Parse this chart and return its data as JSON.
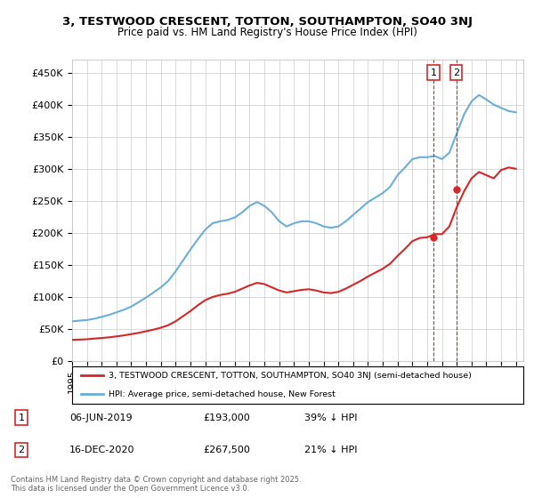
{
  "title_line1": "3, TESTWOOD CRESCENT, TOTTON, SOUTHAMPTON, SO40 3NJ",
  "title_line2": "Price paid vs. HM Land Registry's House Price Index (HPI)",
  "ylim": [
    0,
    470000
  ],
  "yticks": [
    0,
    50000,
    100000,
    150000,
    200000,
    250000,
    300000,
    350000,
    400000,
    450000
  ],
  "ytick_labels": [
    "£0",
    "£50K",
    "£100K",
    "£150K",
    "£200K",
    "£250K",
    "£300K",
    "£350K",
    "£400K",
    "£450K"
  ],
  "legend_entry1": "3, TESTWOOD CRESCENT, TOTTON, SOUTHAMPTON, SO40 3NJ (semi-detached house)",
  "legend_entry2": "HPI: Average price, semi-detached house, New Forest",
  "annotation1_label": "1",
  "annotation1_date": "06-JUN-2019",
  "annotation1_price": "£193,000",
  "annotation1_note": "39% ↓ HPI",
  "annotation2_label": "2",
  "annotation2_date": "16-DEC-2020",
  "annotation2_price": "£267,500",
  "annotation2_note": "21% ↓ HPI",
  "footer": "Contains HM Land Registry data © Crown copyright and database right 2025.\nThis data is licensed under the Open Government Licence v3.0.",
  "hpi_color": "#6baed6",
  "price_color": "#d62728",
  "vline_color": "#d62728",
  "background_color": "#ffffff",
  "grid_color": "#cccccc",
  "hpi_years": [
    1995,
    1995.5,
    1996,
    1996.5,
    1997,
    1997.5,
    1998,
    1998.5,
    1999,
    1999.5,
    2000,
    2000.5,
    2001,
    2001.5,
    2002,
    2002.5,
    2003,
    2003.5,
    2004,
    2004.5,
    2005,
    2005.5,
    2006,
    2006.5,
    2007,
    2007.5,
    2008,
    2008.5,
    2009,
    2009.5,
    2010,
    2010.5,
    2011,
    2011.5,
    2012,
    2012.5,
    2013,
    2013.5,
    2014,
    2014.5,
    2015,
    2015.5,
    2016,
    2016.5,
    2017,
    2017.5,
    2018,
    2018.5,
    2019,
    2019.5,
    2020,
    2020.5,
    2021,
    2021.5,
    2022,
    2022.5,
    2023,
    2023.5,
    2024,
    2024.5,
    2025
  ],
  "hpi_values": [
    62000,
    63000,
    64000,
    66000,
    69000,
    72000,
    76000,
    80000,
    85000,
    92000,
    99000,
    107000,
    115000,
    125000,
    140000,
    157000,
    174000,
    190000,
    205000,
    215000,
    218000,
    220000,
    224000,
    232000,
    242000,
    248000,
    242000,
    232000,
    218000,
    210000,
    215000,
    218000,
    218000,
    215000,
    210000,
    208000,
    210000,
    218000,
    228000,
    238000,
    248000,
    255000,
    262000,
    272000,
    290000,
    302000,
    315000,
    318000,
    318000,
    320000,
    315000,
    325000,
    355000,
    385000,
    405000,
    415000,
    408000,
    400000,
    395000,
    390000,
    388000
  ],
  "price_years": [
    1995,
    1995.5,
    1996,
    1996.5,
    1997,
    1997.5,
    1998,
    1998.5,
    1999,
    1999.5,
    2000,
    2000.5,
    2001,
    2001.5,
    2002,
    2002.5,
    2003,
    2003.5,
    2004,
    2004.5,
    2005,
    2005.5,
    2006,
    2006.5,
    2007,
    2007.5,
    2008,
    2008.5,
    2009,
    2009.5,
    2010,
    2010.5,
    2011,
    2011.5,
    2012,
    2012.5,
    2013,
    2013.5,
    2014,
    2014.5,
    2015,
    2015.5,
    2016,
    2016.5,
    2017,
    2017.5,
    2018,
    2018.5,
    2019,
    2019.5,
    2020,
    2020.5,
    2021,
    2021.5,
    2022,
    2022.5,
    2023,
    2023.5,
    2024,
    2024.5,
    2025
  ],
  "price_values": [
    33000,
    33500,
    34000,
    35000,
    36000,
    37000,
    38500,
    40000,
    42000,
    44000,
    46500,
    49000,
    52000,
    56000,
    62000,
    70000,
    78000,
    87000,
    95000,
    100000,
    103000,
    105000,
    108000,
    113000,
    118000,
    122000,
    120000,
    115000,
    110000,
    107000,
    109000,
    111000,
    112000,
    110000,
    107000,
    106000,
    108000,
    113000,
    119000,
    125000,
    132000,
    138000,
    144000,
    152000,
    164000,
    175000,
    187000,
    192000,
    193000,
    198000,
    198000,
    210000,
    240000,
    265000,
    285000,
    295000,
    290000,
    285000,
    298000,
    302000,
    300000
  ],
  "sale1_x": 2019.42,
  "sale1_y": 193000,
  "sale2_x": 2020.96,
  "sale2_y": 267500,
  "x_tick_years": [
    1995,
    1996,
    1997,
    1998,
    1999,
    2000,
    2001,
    2002,
    2003,
    2004,
    2005,
    2006,
    2007,
    2008,
    2009,
    2010,
    2011,
    2012,
    2013,
    2014,
    2015,
    2016,
    2017,
    2018,
    2019,
    2020,
    2021,
    2022,
    2023,
    2024,
    2025
  ]
}
